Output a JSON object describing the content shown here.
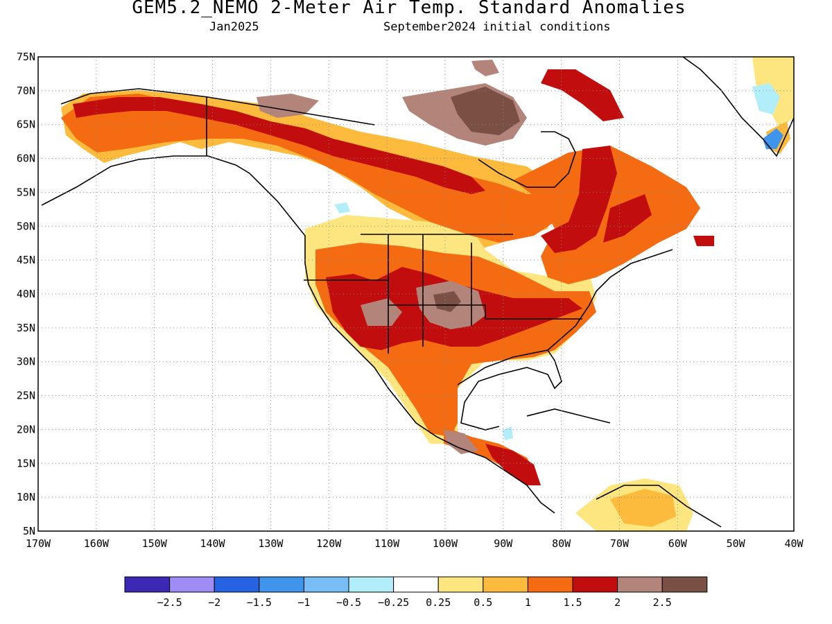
{
  "title": "GEM5.2_NEMO 2-Meter Air Temp. Standard Anomalies",
  "subtitle_left": "Jan2025",
  "subtitle_right": "September2024 initial conditions",
  "map": {
    "lon_range": [
      -170,
      -40
    ],
    "lat_range": [
      5,
      75
    ],
    "lat_ticks": [
      "75N",
      "70N",
      "65N",
      "60N",
      "55N",
      "50N",
      "45N",
      "40N",
      "35N",
      "30N",
      "25N",
      "20N",
      "15N",
      "10N",
      "5N"
    ],
    "lon_ticks": [
      "170W",
      "160W",
      "150W",
      "140W",
      "130W",
      "120W",
      "110W",
      "100W",
      "90W",
      "80W",
      "70W",
      "60W",
      "50W",
      "40W"
    ],
    "gridlines": "dotted"
  },
  "colorbar": {
    "colors": [
      "#3b28b4",
      "#9f8cf5",
      "#2563e3",
      "#3f95ec",
      "#78bdf5",
      "#b1eefa",
      "#ffffff",
      "#fde580",
      "#fdbb3e",
      "#f46b12",
      "#c10d0d",
      "#b38479",
      "#7a4f44"
    ],
    "labels": [
      "-2.5",
      "-2",
      "-1.5",
      "-1",
      "-0.5",
      "-0.25",
      "0.25",
      "0.5",
      "1",
      "1.5",
      "2",
      "2.5"
    ]
  }
}
